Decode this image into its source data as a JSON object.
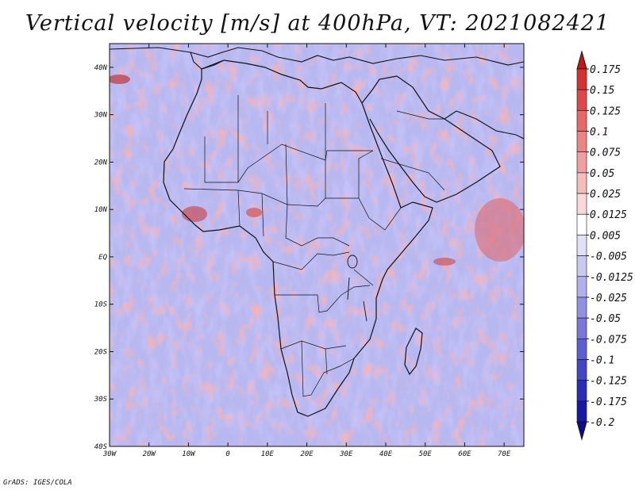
{
  "title": "Vertical velocity [m/s] at 400hPa, VT: 2021082421",
  "footer": "GrADS: IGES/COLA",
  "map": {
    "lon_range": [
      -30,
      75
    ],
    "lat_range": [
      -40,
      45
    ],
    "x_ticks": [
      {
        "lon": -30,
        "label": "30W"
      },
      {
        "lon": -20,
        "label": "20W"
      },
      {
        "lon": -10,
        "label": "10W"
      },
      {
        "lon": 0,
        "label": "0"
      },
      {
        "lon": 10,
        "label": "10E"
      },
      {
        "lon": 20,
        "label": "20E"
      },
      {
        "lon": 30,
        "label": "30E"
      },
      {
        "lon": 40,
        "label": "40E"
      },
      {
        "lon": 50,
        "label": "50E"
      },
      {
        "lon": 60,
        "label": "60E"
      },
      {
        "lon": 70,
        "label": "70E"
      }
    ],
    "y_ticks": [
      {
        "lat": 40,
        "label": "40N"
      },
      {
        "lat": 30,
        "label": "30N"
      },
      {
        "lat": 20,
        "label": "20N"
      },
      {
        "lat": 10,
        "label": "10N"
      },
      {
        "lat": 0,
        "label": "EQ"
      },
      {
        "lat": -10,
        "label": "10S"
      },
      {
        "lat": -20,
        "label": "20S"
      },
      {
        "lat": -30,
        "label": "30S"
      },
      {
        "lat": -40,
        "label": "40S"
      }
    ]
  },
  "colorbar": {
    "levels": [
      "0.175",
      "0.15",
      "0.125",
      "0.1",
      "0.075",
      "0.05",
      "0.025",
      "0.0125",
      "0.005",
      "-0.005",
      "-0.0125",
      "-0.025",
      "-0.05",
      "-0.075",
      "-0.1",
      "-0.125",
      "-0.175",
      "-0.2"
    ],
    "colors": [
      "#c41818",
      "#d83030",
      "#e04848",
      "#e86868",
      "#ec8484",
      "#f0a0a0",
      "#f4bcbc",
      "#f8d8d8",
      "#ffffff",
      "#e0e0f8",
      "#c8c8f0",
      "#b0b0ec",
      "#9090e4",
      "#7878dc",
      "#5e5ed4",
      "#4444c8",
      "#2c2cbc",
      "#1818a8",
      "#0c0c8c"
    ]
  }
}
